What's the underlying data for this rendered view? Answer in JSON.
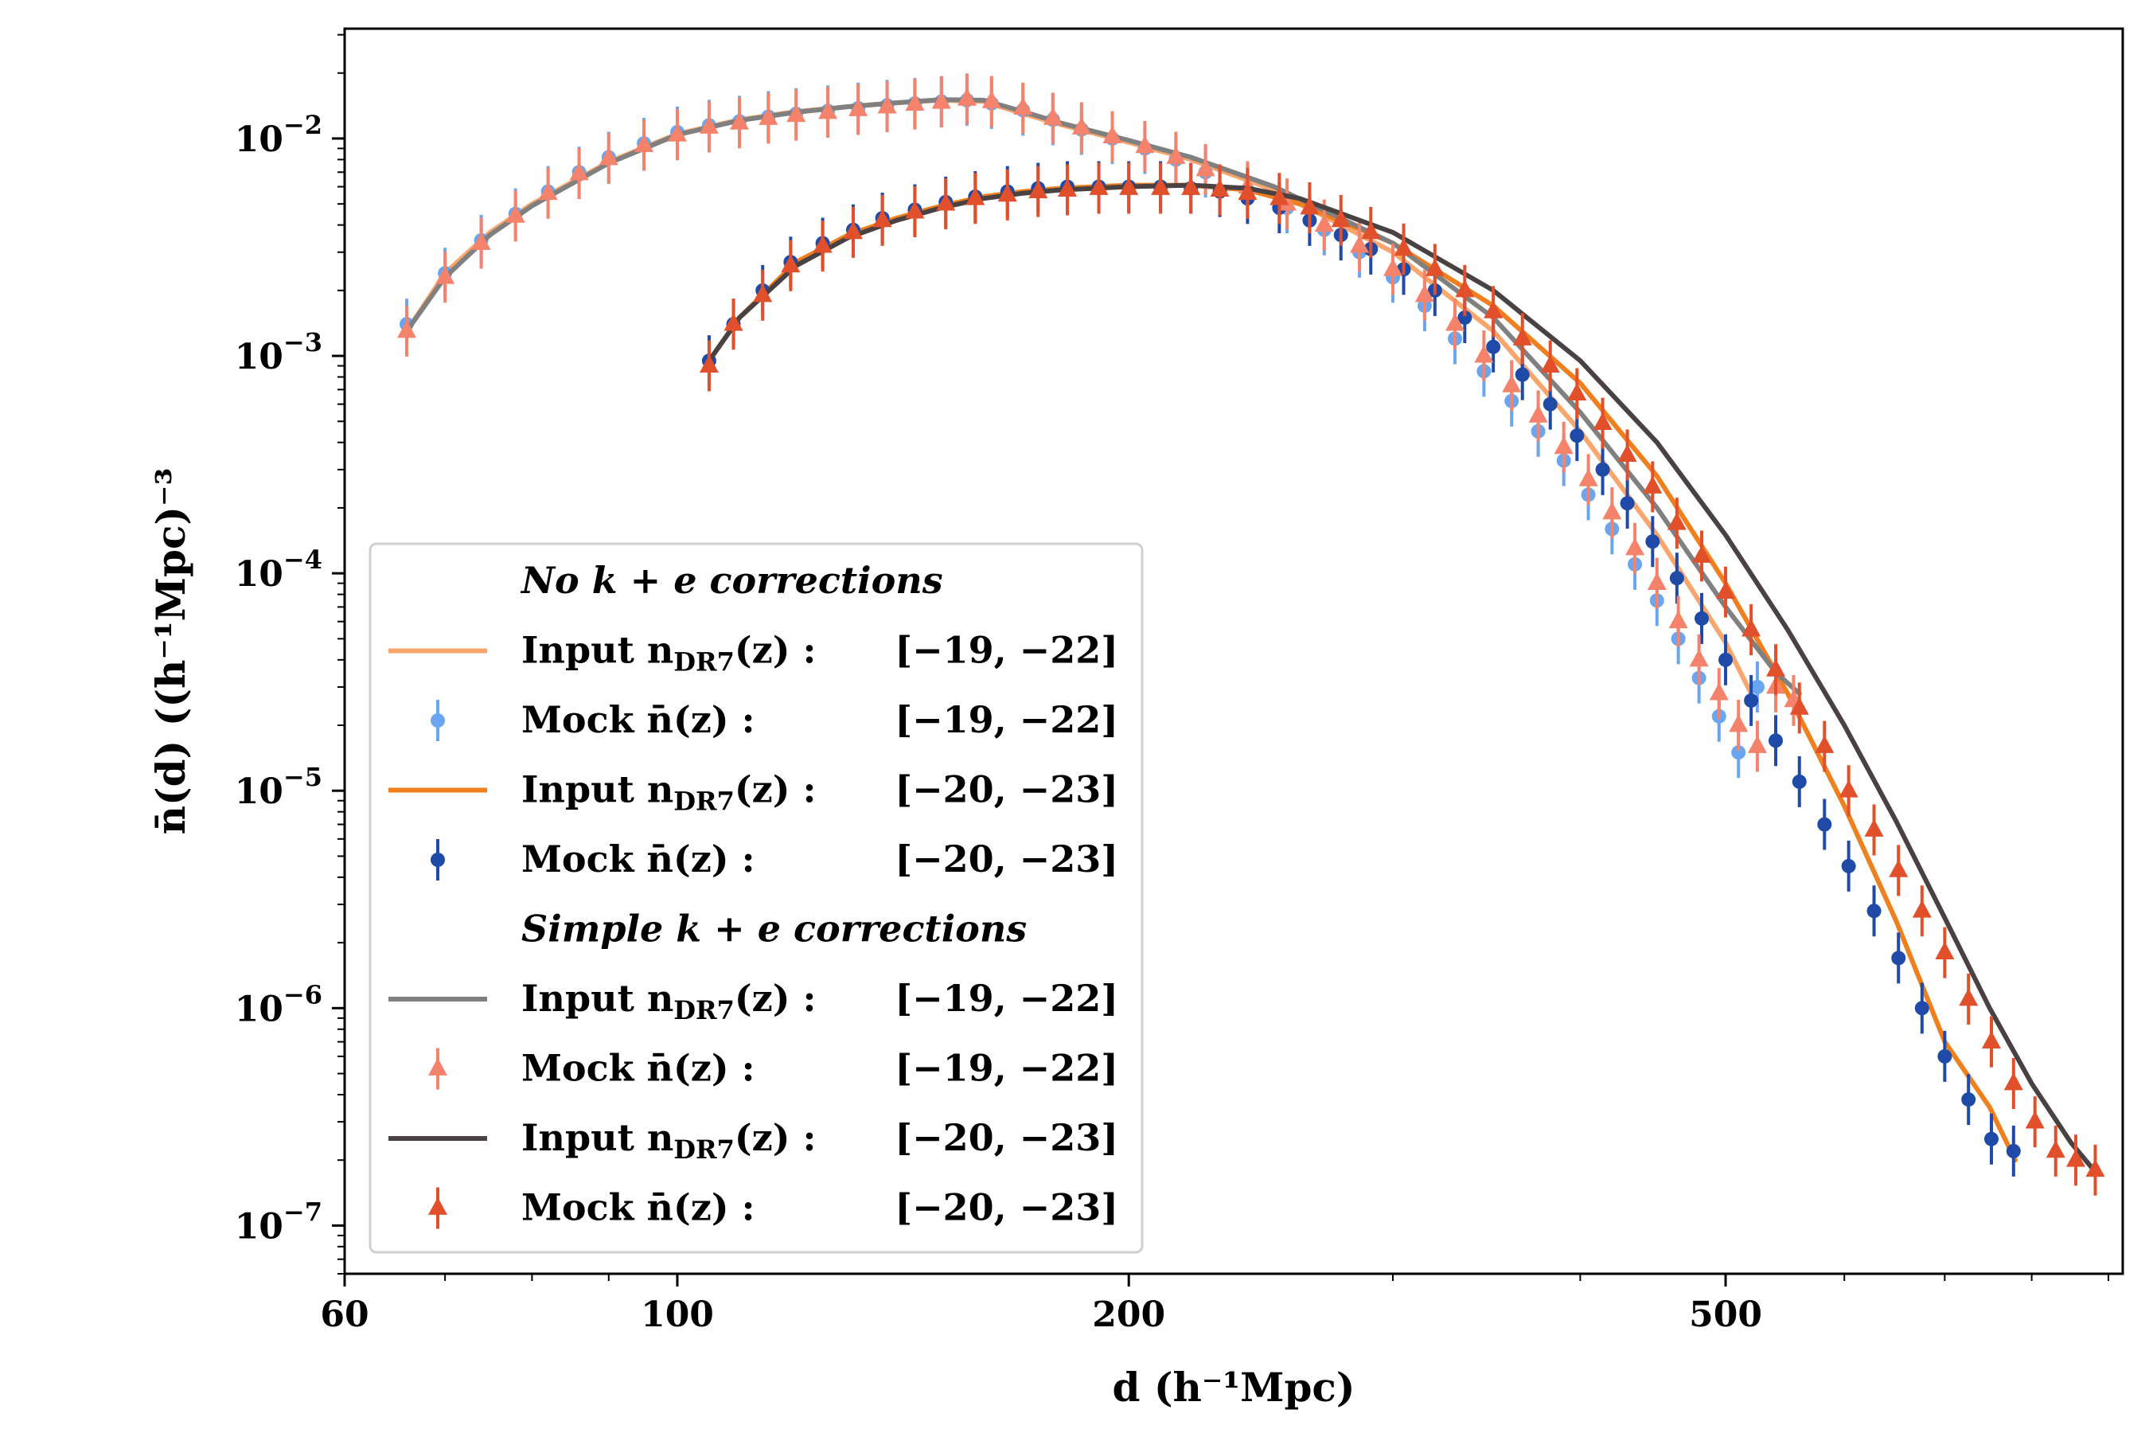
{
  "chart_data": {
    "type": "scatter",
    "title": "",
    "xlabel": "d (h⁻¹Mpc)",
    "ylabel": "n̄(d) ((h⁻¹Mpc)⁻³",
    "xscale": "log",
    "yscale": "log",
    "xlim": [
      60,
      920
    ],
    "ylim": [
      6e-08,
      0.032
    ],
    "grid": false,
    "legend_position": "lower-left",
    "x_ticks": [
      {
        "value": 60,
        "label": "60"
      },
      {
        "value": 100,
        "label": "100"
      },
      {
        "value": 200,
        "label": "200"
      },
      {
        "value": 500,
        "label": "500"
      }
    ],
    "x_minor_ticks": [
      70,
      80,
      90,
      300,
      400,
      600,
      700,
      800,
      900
    ],
    "y_ticks": [
      {
        "value": 0.01,
        "base": "10",
        "exp": "−2"
      },
      {
        "value": 0.001,
        "base": "10",
        "exp": "−3"
      },
      {
        "value": 0.0001,
        "base": "10",
        "exp": "−4"
      },
      {
        "value": 1e-05,
        "base": "10",
        "exp": "−5"
      },
      {
        "value": 1e-06,
        "base": "10",
        "exp": "−6"
      },
      {
        "value": 1e-07,
        "base": "10",
        "exp": "−7"
      }
    ],
    "series": [
      {
        "name": "Input n_DR7(z) : [−19, −22] (No k+e)",
        "kind": "line",
        "color": "#f9a56b",
        "x": [
          66,
          70,
          75,
          80,
          90,
          100,
          110,
          120,
          130,
          140,
          150,
          160,
          170,
          180,
          200,
          220,
          250,
          300,
          350,
          400,
          450,
          500,
          520
        ],
        "y": [
          0.0013,
          0.0024,
          0.0037,
          0.005,
          0.0078,
          0.0105,
          0.0122,
          0.0133,
          0.014,
          0.0146,
          0.015,
          0.0148,
          0.013,
          0.0116,
          0.0096,
          0.008,
          0.0058,
          0.003,
          0.0013,
          0.00045,
          0.00015,
          4.8e-05,
          2.8e-05
        ]
      },
      {
        "name": "Mock n̄(z) : [−19, −22] (No k+e)",
        "kind": "points",
        "marker": "circle",
        "color": "#6aa6f0",
        "x": [
          66,
          70,
          74,
          78,
          82,
          86,
          90,
          95,
          100,
          105,
          110,
          115,
          120,
          126,
          132,
          138,
          144,
          150,
          156,
          162,
          170,
          178,
          186,
          195,
          205,
          215,
          225,
          240,
          255,
          270,
          285,
          300,
          315,
          330,
          345,
          360,
          375,
          390,
          405,
          420,
          435,
          450,
          465,
          480,
          495,
          510,
          525
        ],
        "y": [
          0.0014,
          0.0024,
          0.0034,
          0.0045,
          0.0057,
          0.007,
          0.0082,
          0.0095,
          0.0107,
          0.0115,
          0.012,
          0.0126,
          0.013,
          0.0134,
          0.0138,
          0.0142,
          0.0145,
          0.0148,
          0.015,
          0.0145,
          0.0135,
          0.0122,
          0.011,
          0.01,
          0.009,
          0.008,
          0.007,
          0.0058,
          0.0048,
          0.0038,
          0.003,
          0.0023,
          0.0017,
          0.0012,
          0.00085,
          0.00062,
          0.00045,
          0.00033,
          0.00023,
          0.00016,
          0.00011,
          7.5e-05,
          5e-05,
          3.3e-05,
          2.2e-05,
          1.5e-05,
          3e-05
        ]
      },
      {
        "name": "Input n_DR7(z) : [−20, −23] (No k+e)",
        "kind": "line",
        "color": "#f07f1e",
        "x": [
          105,
          110,
          120,
          130,
          140,
          150,
          160,
          170,
          180,
          200,
          220,
          240,
          260,
          300,
          350,
          400,
          450,
          500,
          550,
          600,
          650,
          700,
          750,
          780
        ],
        "y": [
          0.00095,
          0.0015,
          0.0027,
          0.0036,
          0.0043,
          0.0049,
          0.0054,
          0.0057,
          0.0059,
          0.0061,
          0.0061,
          0.0058,
          0.005,
          0.0033,
          0.0017,
          0.00075,
          0.00028,
          9e-05,
          2.8e-05,
          8.5e-06,
          2.5e-06,
          7e-07,
          3.5e-07,
          2e-07
        ]
      },
      {
        "name": "Mock n̄(z) : [−20, −23] (No k+e)",
        "kind": "points",
        "marker": "circle",
        "color": "#1f4aa8",
        "x": [
          105,
          109,
          114,
          119,
          125,
          131,
          137,
          144,
          151,
          158,
          166,
          174,
          182,
          191,
          200,
          210,
          220,
          230,
          240,
          252,
          264,
          277,
          290,
          305,
          320,
          335,
          350,
          366,
          382,
          398,
          414,
          430,
          447,
          464,
          482,
          500,
          520,
          540,
          560,
          582,
          604,
          628,
          652,
          676,
          700,
          726,
          752,
          778
        ],
        "y": [
          0.00095,
          0.0014,
          0.002,
          0.0027,
          0.0033,
          0.0038,
          0.0043,
          0.0047,
          0.0051,
          0.0054,
          0.0057,
          0.0059,
          0.006,
          0.006,
          0.006,
          0.006,
          0.0059,
          0.0057,
          0.0053,
          0.0048,
          0.0042,
          0.0036,
          0.0031,
          0.0025,
          0.002,
          0.0015,
          0.0011,
          0.00082,
          0.0006,
          0.00043,
          0.0003,
          0.00021,
          0.00014,
          9.5e-05,
          6.2e-05,
          4e-05,
          2.6e-05,
          1.7e-05,
          1.1e-05,
          7e-06,
          4.5e-06,
          2.8e-06,
          1.7e-06,
          1e-06,
          6e-07,
          3.8e-07,
          2.5e-07,
          2.2e-07
        ]
      },
      {
        "name": "Input n_DR7(z) : [−19, −22] (Simple k+e)",
        "kind": "line",
        "color": "#808080",
        "x": [
          66,
          70,
          75,
          80,
          90,
          100,
          110,
          120,
          130,
          140,
          150,
          160,
          170,
          180,
          200,
          220,
          250,
          300,
          350,
          400,
          450,
          500,
          540,
          560
        ],
        "y": [
          0.0013,
          0.0023,
          0.0036,
          0.0049,
          0.0077,
          0.0104,
          0.0121,
          0.0132,
          0.014,
          0.0146,
          0.0151,
          0.015,
          0.0133,
          0.0118,
          0.0098,
          0.0082,
          0.006,
          0.0033,
          0.0015,
          0.00055,
          0.0002,
          7e-05,
          3.5e-05,
          2.8e-05
        ]
      },
      {
        "name": "Mock n̄(z) : [−19, −22] (Simple k+e)",
        "kind": "points",
        "marker": "triangle",
        "color": "#f5836b",
        "x": [
          66,
          70,
          74,
          78,
          82,
          86,
          90,
          95,
          100,
          105,
          110,
          115,
          120,
          126,
          132,
          138,
          144,
          150,
          156,
          162,
          170,
          178,
          186,
          195,
          205,
          215,
          225,
          240,
          255,
          270,
          285,
          300,
          315,
          330,
          345,
          360,
          375,
          390,
          405,
          420,
          435,
          450,
          465,
          480,
          495,
          510,
          525,
          540,
          555
        ],
        "y": [
          0.0013,
          0.0023,
          0.0033,
          0.0044,
          0.0056,
          0.0069,
          0.0081,
          0.0093,
          0.0104,
          0.0113,
          0.0118,
          0.0124,
          0.0128,
          0.0132,
          0.0136,
          0.014,
          0.0144,
          0.0147,
          0.0152,
          0.0148,
          0.0138,
          0.0124,
          0.0112,
          0.0102,
          0.0092,
          0.0082,
          0.0072,
          0.006,
          0.005,
          0.004,
          0.0032,
          0.0025,
          0.0019,
          0.0014,
          0.001,
          0.00073,
          0.00053,
          0.00038,
          0.00027,
          0.00019,
          0.00013,
          9e-05,
          6e-05,
          4e-05,
          2.8e-05,
          2e-05,
          1.6e-05,
          3e-05,
          2.6e-05
        ]
      },
      {
        "name": "Input n_DR7(z) : [−20, −23] (Simple k+e)",
        "kind": "line",
        "color": "#4a4242",
        "x": [
          105,
          110,
          120,
          130,
          140,
          150,
          160,
          170,
          180,
          200,
          220,
          240,
          260,
          300,
          350,
          400,
          450,
          500,
          550,
          600,
          650,
          700,
          750,
          800,
          850,
          880
        ],
        "y": [
          0.00095,
          0.0015,
          0.0026,
          0.0035,
          0.0042,
          0.0048,
          0.0053,
          0.0056,
          0.0058,
          0.006,
          0.0061,
          0.0059,
          0.0053,
          0.0037,
          0.002,
          0.00095,
          0.0004,
          0.00015,
          5.5e-05,
          2e-05,
          7.2e-06,
          2.6e-06,
          1e-06,
          4.5e-07,
          2.4e-07,
          1.8e-07
        ]
      },
      {
        "name": "Mock n̄(z) : [−20, −23] (Simple k+e)",
        "kind": "points",
        "marker": "triangle",
        "color": "#e2502b",
        "x": [
          105,
          109,
          114,
          119,
          125,
          131,
          137,
          144,
          151,
          158,
          166,
          174,
          182,
          191,
          200,
          210,
          220,
          230,
          240,
          252,
          264,
          277,
          290,
          305,
          320,
          335,
          350,
          366,
          382,
          398,
          414,
          430,
          447,
          464,
          482,
          500,
          520,
          540,
          560,
          582,
          604,
          628,
          652,
          676,
          700,
          726,
          752,
          778,
          804,
          830,
          856,
          882
        ],
        "y": [
          0.0009,
          0.0014,
          0.0019,
          0.0026,
          0.0032,
          0.0037,
          0.0042,
          0.0046,
          0.005,
          0.0053,
          0.0055,
          0.0057,
          0.0058,
          0.0059,
          0.0059,
          0.0059,
          0.0059,
          0.0058,
          0.0056,
          0.0053,
          0.0048,
          0.0042,
          0.0037,
          0.0031,
          0.0025,
          0.002,
          0.0016,
          0.0012,
          0.0009,
          0.00067,
          0.00049,
          0.00035,
          0.00025,
          0.00017,
          0.00012,
          8.2e-05,
          5.5e-05,
          3.6e-05,
          2.4e-05,
          1.6e-05,
          1e-05,
          6.6e-06,
          4.3e-06,
          2.8e-06,
          1.8e-06,
          1.1e-06,
          7e-07,
          4.5e-07,
          3e-07,
          2.2e-07,
          2e-07,
          1.8e-07
        ]
      }
    ],
    "legend": {
      "groups": [
        {
          "heading": "No k + e corrections",
          "entries": [
            {
              "kind": "line",
              "color": "#f9a56b",
              "label": "Input n",
              "sub": "DR7",
              "tail": "(z) :",
              "range": "[−19, −22]"
            },
            {
              "kind": "circle",
              "color": "#6aa6f0",
              "label": "Mock n̄(z) :",
              "sub": "",
              "tail": "",
              "range": "[−19, −22]"
            },
            {
              "kind": "line",
              "color": "#f07f1e",
              "label": "Input n",
              "sub": "DR7",
              "tail": "(z) :",
              "range": "[−20, −23]"
            },
            {
              "kind": "circle",
              "color": "#1f4aa8",
              "label": "Mock n̄(z) :",
              "sub": "",
              "tail": "",
              "range": "[−20, −23]"
            }
          ]
        },
        {
          "heading": "Simple k + e corrections",
          "entries": [
            {
              "kind": "line",
              "color": "#808080",
              "label": "Input n",
              "sub": "DR7",
              "tail": "(z) :",
              "range": "[−19, −22]"
            },
            {
              "kind": "triangle",
              "color": "#f5836b",
              "label": "Mock n̄(z) :",
              "sub": "",
              "tail": "",
              "range": "[−19, −22]"
            },
            {
              "kind": "line",
              "color": "#4a4242",
              "label": "Input n",
              "sub": "DR7",
              "tail": "(z) :",
              "range": "[−20, −23]"
            },
            {
              "kind": "triangle",
              "color": "#e2502b",
              "label": "Mock n̄(z) :",
              "sub": "",
              "tail": "",
              "range": "[−20, −23]"
            }
          ]
        }
      ]
    }
  }
}
